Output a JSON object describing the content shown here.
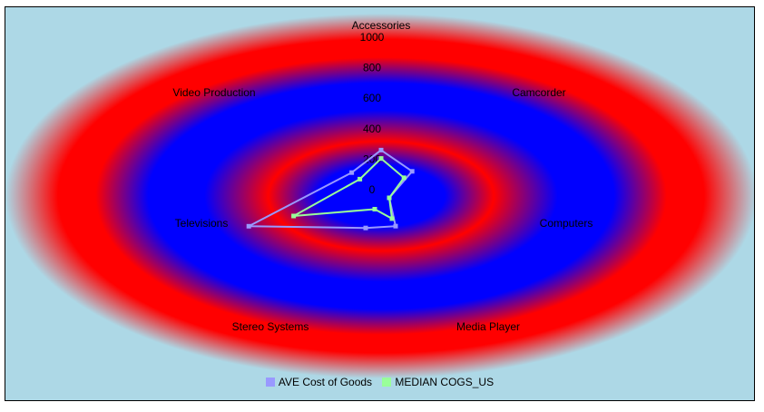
{
  "chart_data": {
    "type": "radar",
    "categories": [
      "Accessories",
      "Camcorder",
      "Computers",
      "Media Player",
      "Stereo Systems",
      "Televisions",
      "Video Production"
    ],
    "radial_ticks": [
      "0",
      "200",
      "400",
      "600",
      "800",
      "1000"
    ],
    "rlim": [
      0,
      1000
    ],
    "series": [
      {
        "name": "AVE Cost of Goods",
        "color": "#9999ff",
        "values": [
          220,
          190,
          40,
          160,
          170,
          650,
          180
        ]
      },
      {
        "name": "MEDIAN COGS_US",
        "color": "#99ff99",
        "values": [
          180,
          140,
          40,
          120,
          70,
          430,
          130
        ]
      }
    ],
    "legend_position": "bottom",
    "background": {
      "outer": "#add8e6",
      "ring_a": "#ff0000",
      "ring_b": "#0000ff"
    }
  }
}
